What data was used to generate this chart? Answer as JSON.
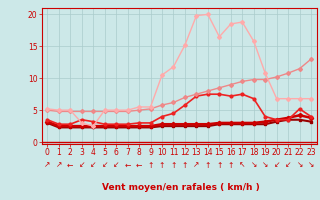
{
  "bg_color": "#cce8e8",
  "grid_color": "#aacccc",
  "xlabel": "Vent moyen/en rafales ( km/h )",
  "x_ticks": [
    0,
    1,
    2,
    3,
    4,
    5,
    6,
    7,
    8,
    9,
    10,
    11,
    12,
    13,
    14,
    15,
    16,
    17,
    18,
    19,
    20,
    21,
    22,
    23
  ],
  "y_ticks": [
    0,
    5,
    10,
    15,
    20
  ],
  "ylim": [
    -0.3,
    21.0
  ],
  "xlim": [
    -0.5,
    23.5
  ],
  "series": [
    {
      "name": "line_darkest_red",
      "color": "#990000",
      "lw": 1.5,
      "marker": "s",
      "ms": 2.0,
      "x": [
        0,
        1,
        2,
        3,
        4,
        5,
        6,
        7,
        8,
        9,
        10,
        11,
        12,
        13,
        14,
        15,
        16,
        17,
        18,
        19,
        20,
        21,
        22,
        23
      ],
      "y": [
        3.0,
        2.3,
        2.3,
        2.3,
        2.3,
        2.3,
        2.3,
        2.3,
        2.3,
        2.3,
        2.5,
        2.5,
        2.5,
        2.5,
        2.5,
        2.8,
        2.8,
        2.8,
        2.8,
        2.8,
        3.2,
        3.5,
        3.5,
        3.2
      ]
    },
    {
      "name": "line_dark_red",
      "color": "#cc0000",
      "lw": 1.8,
      "marker": "D",
      "ms": 2.2,
      "x": [
        0,
        1,
        2,
        3,
        4,
        5,
        6,
        7,
        8,
        9,
        10,
        11,
        12,
        13,
        14,
        15,
        16,
        17,
        18,
        19,
        20,
        21,
        22,
        23
      ],
      "y": [
        3.2,
        2.5,
        2.5,
        2.5,
        2.5,
        2.5,
        2.5,
        2.5,
        2.5,
        2.5,
        2.8,
        2.8,
        2.8,
        2.8,
        2.8,
        3.0,
        3.0,
        3.0,
        3.0,
        3.2,
        3.5,
        3.8,
        4.2,
        3.8
      ]
    },
    {
      "name": "line_medium_red",
      "color": "#ee2222",
      "lw": 1.2,
      "marker": "o",
      "ms": 2.0,
      "x": [
        0,
        1,
        2,
        3,
        4,
        5,
        6,
        7,
        8,
        9,
        10,
        11,
        12,
        13,
        14,
        15,
        16,
        17,
        18,
        19,
        20,
        21,
        22,
        23
      ],
      "y": [
        3.5,
        2.8,
        2.8,
        3.5,
        3.2,
        2.8,
        2.8,
        2.8,
        3.0,
        3.0,
        4.0,
        4.5,
        5.8,
        7.2,
        7.5,
        7.5,
        7.2,
        7.5,
        6.8,
        4.0,
        3.5,
        3.5,
        5.2,
        4.0
      ]
    },
    {
      "name": "line_light_diagonal1",
      "color": "#ee8888",
      "lw": 1.0,
      "marker": "D",
      "ms": 2.0,
      "x": [
        0,
        1,
        2,
        3,
        4,
        5,
        6,
        7,
        8,
        9,
        10,
        11,
        12,
        13,
        14,
        15,
        16,
        17,
        18,
        19,
        20,
        21,
        22,
        23
      ],
      "y": [
        5.0,
        4.8,
        4.8,
        4.8,
        4.8,
        4.8,
        4.8,
        4.8,
        5.0,
        5.2,
        5.8,
        6.2,
        7.0,
        7.5,
        8.0,
        8.5,
        9.0,
        9.5,
        9.8,
        9.8,
        10.2,
        10.8,
        11.5,
        13.0
      ]
    },
    {
      "name": "line_lightest_peak",
      "color": "#ffaaaa",
      "lw": 1.0,
      "marker": "D",
      "ms": 2.0,
      "x": [
        0,
        1,
        2,
        3,
        4,
        5,
        6,
        7,
        8,
        9,
        10,
        11,
        12,
        13,
        14,
        15,
        16,
        17,
        18,
        19,
        20,
        21,
        22,
        23
      ],
      "y": [
        5.2,
        5.0,
        5.0,
        3.0,
        2.5,
        5.0,
        5.0,
        5.0,
        5.5,
        5.5,
        10.5,
        11.8,
        15.2,
        19.8,
        20.0,
        16.5,
        18.5,
        18.8,
        15.8,
        10.8,
        6.8,
        6.8,
        6.8,
        6.8
      ]
    }
  ],
  "arrows": [
    "↗",
    "↗",
    "←",
    "↙",
    "↙",
    "↙",
    "↙",
    "←",
    "←",
    "↑",
    "↑",
    "↑",
    "↑",
    "↗",
    "↑",
    "↑",
    "↑",
    "↖",
    "↘",
    "↘",
    "↙",
    "↙",
    "↘",
    "↘"
  ],
  "arrow_color": "#cc0000",
  "axis_color": "#cc0000",
  "tick_color": "#cc0000",
  "label_fontsize": 6.5,
  "tick_fontsize": 5.5
}
